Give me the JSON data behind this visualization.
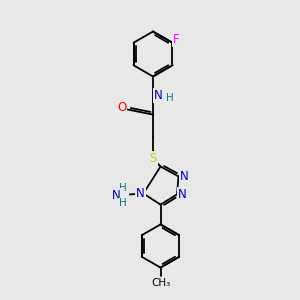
{
  "background_color": "#e8e8e8",
  "bond_color": "#000000",
  "atom_colors": {
    "F": "#ff00ff",
    "N": "#0000cd",
    "O": "#ff0000",
    "S": "#cccc00",
    "C": "#000000",
    "H": "#008080"
  },
  "figsize": [
    3.0,
    3.0
  ],
  "dpi": 100,
  "xlim": [
    0,
    6
  ],
  "ylim": [
    0,
    10
  ]
}
